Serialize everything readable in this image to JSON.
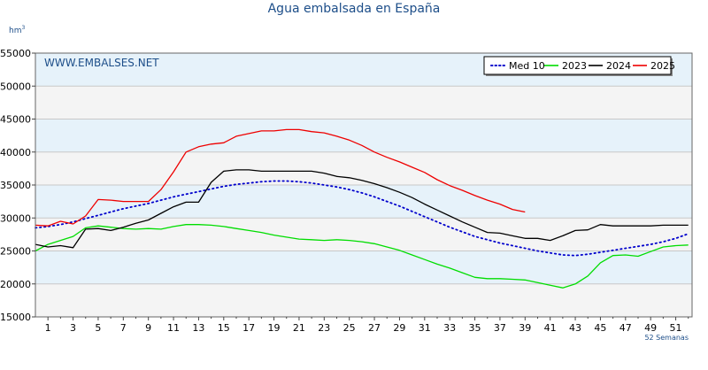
{
  "title": "Agua embalsada en España",
  "unit_base": "hm",
  "unit_exp": "3",
  "watermark": "WWW.EMBALSES.NET",
  "x_caption": "52 Semanas",
  "colors": {
    "grid": "#c8c8c8",
    "band_blue": "#e6f2fa",
    "band_gray": "#f4f4f4",
    "text_blue": "#1d4e89"
  },
  "chart_data": {
    "type": "line",
    "title": "Agua embalsada en España",
    "xlabel": "52 Semanas",
    "ylabel": "hm3",
    "xlim": [
      1,
      52
    ],
    "ylim": [
      15000,
      55000
    ],
    "x_ticks": [
      1,
      3,
      5,
      7,
      9,
      11,
      13,
      15,
      17,
      19,
      21,
      23,
      25,
      27,
      29,
      31,
      33,
      35,
      37,
      39,
      41,
      43,
      45,
      47,
      49,
      51
    ],
    "y_ticks": [
      15000,
      20000,
      25000,
      30000,
      35000,
      40000,
      45000,
      50000,
      55000
    ],
    "grid": true,
    "legend_position": "top-right",
    "series": [
      {
        "name": "Med 10",
        "color": "#0000cc",
        "dash": "dotted",
        "x": [
          0,
          1,
          2,
          3,
          4,
          5,
          6,
          7,
          8,
          9,
          10,
          11,
          12,
          13,
          14,
          15,
          16,
          17,
          18,
          19,
          20,
          21,
          22,
          23,
          24,
          25,
          26,
          27,
          28,
          29,
          30,
          31,
          32,
          33,
          34,
          35,
          36,
          37,
          38,
          39,
          40,
          41,
          42,
          43,
          44,
          45,
          46,
          47,
          48,
          49,
          50,
          51,
          52
        ],
        "values": [
          28500,
          28700,
          29000,
          29400,
          29900,
          30400,
          30900,
          31400,
          31800,
          32200,
          32700,
          33200,
          33600,
          34000,
          34400,
          34800,
          35100,
          35300,
          35500,
          35600,
          35600,
          35500,
          35300,
          35000,
          34700,
          34300,
          33800,
          33200,
          32500,
          31800,
          31000,
          30200,
          29400,
          28600,
          27900,
          27200,
          26700,
          26200,
          25800,
          25400,
          25000,
          24700,
          24400,
          24300,
          24500,
          24800,
          25100,
          25400,
          25700,
          26000,
          26400,
          26900,
          27600
        ]
      },
      {
        "name": "2023",
        "color": "#00dd00",
        "dash": "solid",
        "x": [
          0,
          1,
          2,
          3,
          4,
          5,
          6,
          7,
          8,
          9,
          10,
          11,
          12,
          13,
          14,
          15,
          16,
          17,
          18,
          19,
          20,
          21,
          22,
          23,
          24,
          25,
          26,
          27,
          28,
          29,
          30,
          31,
          32,
          33,
          34,
          35,
          36,
          37,
          38,
          39,
          40,
          41,
          42,
          43,
          44,
          45,
          46,
          47,
          48,
          49,
          50,
          51,
          52
        ],
        "values": [
          25000,
          26000,
          26600,
          27200,
          28500,
          28800,
          28600,
          28400,
          28300,
          28400,
          28300,
          28700,
          29000,
          29000,
          28900,
          28700,
          28400,
          28100,
          27800,
          27400,
          27100,
          26800,
          26700,
          26600,
          26700,
          26600,
          26400,
          26100,
          25600,
          25100,
          24400,
          23700,
          23000,
          22400,
          21700,
          21000,
          20800,
          20800,
          20700,
          20600,
          20200,
          19800,
          19400,
          20000,
          21200,
          23200,
          24300,
          24400,
          24200,
          24900,
          25600,
          25800,
          25900
        ]
      },
      {
        "name": "2024",
        "color": "#000000",
        "dash": "solid",
        "x": [
          0,
          1,
          2,
          3,
          4,
          5,
          6,
          7,
          8,
          9,
          10,
          11,
          12,
          13,
          14,
          15,
          16,
          17,
          18,
          19,
          20,
          21,
          22,
          23,
          24,
          25,
          26,
          27,
          28,
          29,
          30,
          31,
          32,
          33,
          34,
          35,
          36,
          37,
          38,
          39,
          40,
          41,
          42,
          43,
          44,
          45,
          46,
          47,
          48,
          49,
          50,
          51,
          52
        ],
        "values": [
          26000,
          25600,
          25800,
          25500,
          28300,
          28400,
          28100,
          28600,
          29200,
          29700,
          30700,
          31700,
          32400,
          32400,
          35400,
          37100,
          37300,
          37300,
          37100,
          37100,
          37100,
          37100,
          37100,
          36800,
          36300,
          36100,
          35700,
          35200,
          34600,
          33900,
          33100,
          32100,
          31200,
          30300,
          29400,
          28600,
          27800,
          27700,
          27300,
          26900,
          26900,
          26600,
          27300,
          28100,
          28200,
          29000,
          28800,
          28800,
          28800,
          28800,
          28900,
          28900,
          28900
        ]
      },
      {
        "name": "2025",
        "color": "#ee0000",
        "dash": "solid",
        "x": [
          0,
          1,
          2,
          3,
          4,
          5,
          6,
          7,
          8,
          9,
          10,
          11,
          12,
          13,
          14,
          15,
          16,
          17,
          18,
          19,
          20,
          21,
          22,
          23,
          24,
          25,
          26,
          27,
          28,
          29,
          30,
          31,
          32,
          33,
          34,
          35,
          36,
          37,
          38,
          39
        ],
        "values": [
          28900,
          28800,
          29500,
          29100,
          30300,
          32800,
          32700,
          32500,
          32500,
          32500,
          34300,
          37000,
          40000,
          40800,
          41200,
          41400,
          42400,
          42800,
          43200,
          43200,
          43400,
          43400,
          43100,
          42900,
          42400,
          41800,
          41000,
          40000,
          39200,
          38500,
          37700,
          36900,
          35800,
          34900,
          34200,
          33400,
          32700,
          32100,
          31300,
          30900
        ]
      }
    ]
  }
}
